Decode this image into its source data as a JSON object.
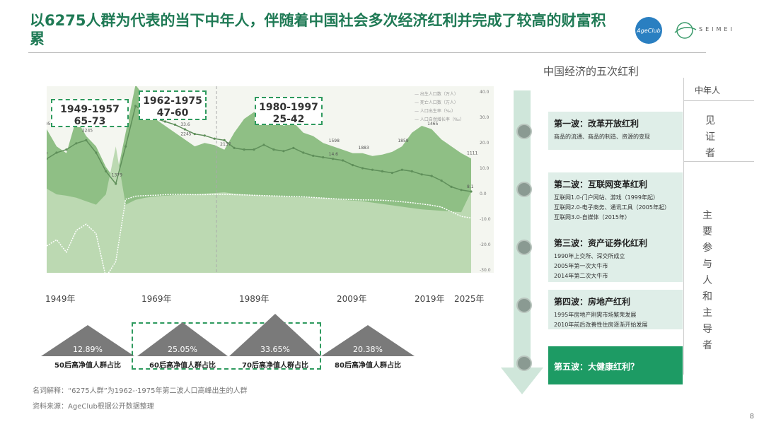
{
  "header": {
    "title": "以6275人群为代表的当下中年人，伴随着中国社会多次经济红利并完成了较高的财富积累",
    "logo_text": "AgeClub",
    "logo2_text": "SEIMEI"
  },
  "chart_data": {
    "type": "area",
    "series": [
      {
        "values": [
          1950,
          1700,
          1600,
          2100,
          1850,
          1700,
          1400,
          1200,
          1900,
          2600,
          2400,
          2100,
          2000,
          1900,
          1800,
          1700,
          1750,
          1720,
          1650,
          1900,
          2100,
          2200,
          2180,
          2150,
          2000,
          2050,
          1900,
          1850,
          1750,
          1700,
          1650,
          1600,
          1600,
          1560,
          1580,
          1620,
          1700,
          1900,
          2000,
          1950,
          1800,
          1700,
          1600,
          1523
        ]
      },
      {
        "values": [
          1082,
          1000,
          980,
          950,
          900,
          850,
          1000,
          1700,
          850,
          920,
          950,
          970,
          980,
          990,
          1000,
          1000,
          1010,
          1020,
          1030,
          1010,
          1000,
          990,
          985,
          980,
          970,
          960,
          955,
          950,
          945,
          930,
          920,
          910,
          900,
          880,
          860,
          840,
          820,
          800,
          780,
          770,
          760,
          750,
          740,
          1039
        ]
      },
      {
        "values": [
          18.0,
          20.0,
          21.0,
          23.0,
          24.0,
          20.0,
          14.0,
          10.0,
          22.0,
          35.0,
          33.0,
          31.0,
          30.0,
          29.0,
          27.5,
          26.0,
          25.5,
          24.5,
          24.0,
          21.5,
          21.0,
          21.0,
          22.5,
          21.0,
          20.5,
          21.5,
          20.0,
          19.0,
          18.5,
          18.0,
          17.5,
          16.0,
          15.0,
          14.5,
          14.0,
          13.5,
          14.5,
          14.0,
          13.0,
          12.5,
          11.0,
          9.0,
          8.0,
          7.5
        ]
      },
      {
        "values": [
          -10.0,
          -8.0,
          -12.0,
          -5.0,
          -3.0,
          -6.0,
          -20.0,
          -15.0,
          5.0,
          6.0,
          6.2,
          6.3,
          6.5,
          6.6,
          6.6,
          6.5,
          6.5,
          6.6,
          6.6,
          6.5,
          6.4,
          6.3,
          6.2,
          6.1,
          6.0,
          5.9,
          5.8,
          5.6,
          5.4,
          5.2,
          5.0,
          4.9,
          4.8,
          4.8,
          4.7,
          4.5,
          4.2,
          3.9,
          3.5,
          3.1,
          2.5,
          1.0,
          -0.5,
          -1.0
        ]
      }
    ],
    "legend": [
      "出生人口数（万人）",
      "死亡人口数（万人）",
      "人口出生率（‰）",
      "人口自然增长率（‰）"
    ],
    "x_ticks": [
      "1949年",
      "1969年",
      "1989年",
      "2009年",
      "2019年",
      "2025年"
    ],
    "y_right_ticks": [
      "40.0",
      "30.0",
      "20.0",
      "10.0",
      "0.0",
      "-10.0",
      "-20.0",
      "-30.0"
    ],
    "annotations": {
      "birth_labels": [
        "1950",
        "2245",
        "1379",
        "1786",
        "2245",
        "2137",
        "2044",
        "1604",
        "1598",
        "1883",
        "1859",
        "1465",
        "1111"
      ],
      "rate_labels": [
        "37",
        "33.6",
        "14.6",
        "8.1"
      ]
    },
    "boxes": [
      {
        "range": "1949-1957",
        "value": "65-73",
        "highlight": false
      },
      {
        "range": "1962-1975",
        "value": "47-60",
        "highlight": true
      },
      {
        "range": "1980-1997",
        "value": "25-42",
        "highlight": false
      }
    ]
  },
  "wealth_share": [
    {
      "pct": "12.89%",
      "label": "50后高净值人群占比"
    },
    {
      "pct": "25.05%",
      "label": "60后高净值人群占比"
    },
    {
      "pct": "33.65%",
      "label": "70后高净值人群占比"
    },
    {
      "pct": "20.38%",
      "label": "80后高净值人群占比"
    }
  ],
  "footnotes": {
    "definition": "名词解释：“6275人群”为1962-·1975年第二波人口高峰出生的人群",
    "source": "资料来源：AgeClub根据公开数据整理"
  },
  "dividends": {
    "title": "中国经济的五次红利",
    "col_header": "中年人",
    "witness": "见证者",
    "participant": "主要参与人和主导者",
    "items": [
      {
        "title": "第一波：改革开放红利",
        "lines": [
          "商品的流通、商品的制造、资源的变现"
        ]
      },
      {
        "title": "第二波：互联网变革红利",
        "lines": [
          "互联网1.0-门户网站、游戏（1999年起）",
          "互联网2.0-电子商务、通讯工具（2005年起）",
          "互联网3.0-自媒体（2015年）"
        ]
      },
      {
        "title": "第三波：资产证券化红利",
        "lines": [
          "1990年上交所、深交所成立",
          "2005年第一次大牛市",
          "2014年第二次大牛市"
        ]
      },
      {
        "title": "第四波：房地产红利",
        "lines": [
          "1995年房地产刚需市场繁荣发展",
          "2010年前后改善性住房逐渐开始发展"
        ]
      },
      {
        "title": "第五波：大健康红利？",
        "lines": []
      }
    ]
  },
  "page_number": "8",
  "colors": {
    "accent": "#1f7a55",
    "area_dark": "#8fbf85",
    "area_light": "#bcd9b2",
    "card_bg": "#dfeee8",
    "card_dark": "#1d9b64"
  }
}
